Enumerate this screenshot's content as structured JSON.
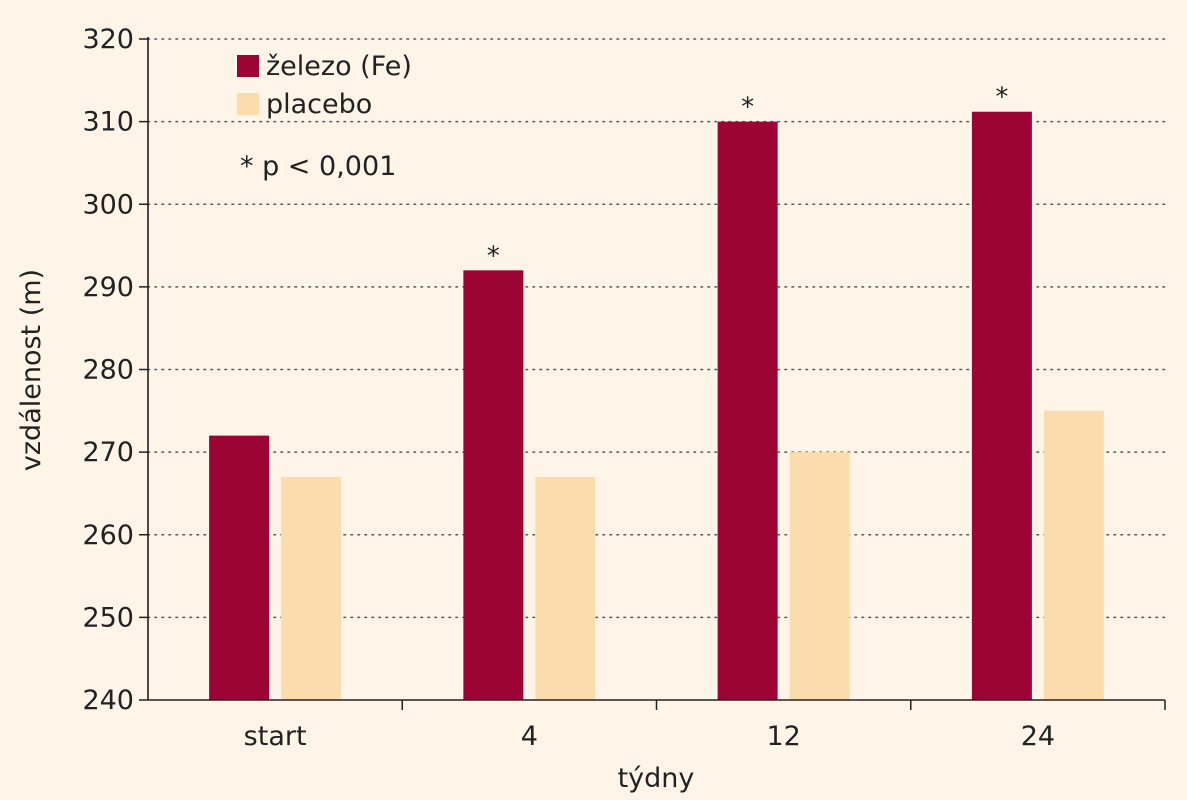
{
  "chart_data": {
    "type": "bar",
    "categories": [
      "start",
      "4",
      "12",
      "24"
    ],
    "series": [
      {
        "name": "železo (Fe)",
        "color": "#9b0434",
        "values": [
          272,
          292,
          310,
          311.2
        ]
      },
      {
        "name": "placebo",
        "color": "#fbdcad",
        "values": [
          267,
          267,
          270,
          275
        ]
      }
    ],
    "significance_marker": "*",
    "significant": [
      false,
      true,
      true,
      true
    ],
    "annotation": "* p < 0,001",
    "xlabel": "týdny",
    "ylabel": "vzdálenost (m)",
    "ylim": [
      240,
      320
    ],
    "yticks": [
      240,
      250,
      260,
      270,
      280,
      290,
      300,
      310,
      320
    ],
    "grid": "horizontal-dotted",
    "legend_position": "top-left"
  }
}
